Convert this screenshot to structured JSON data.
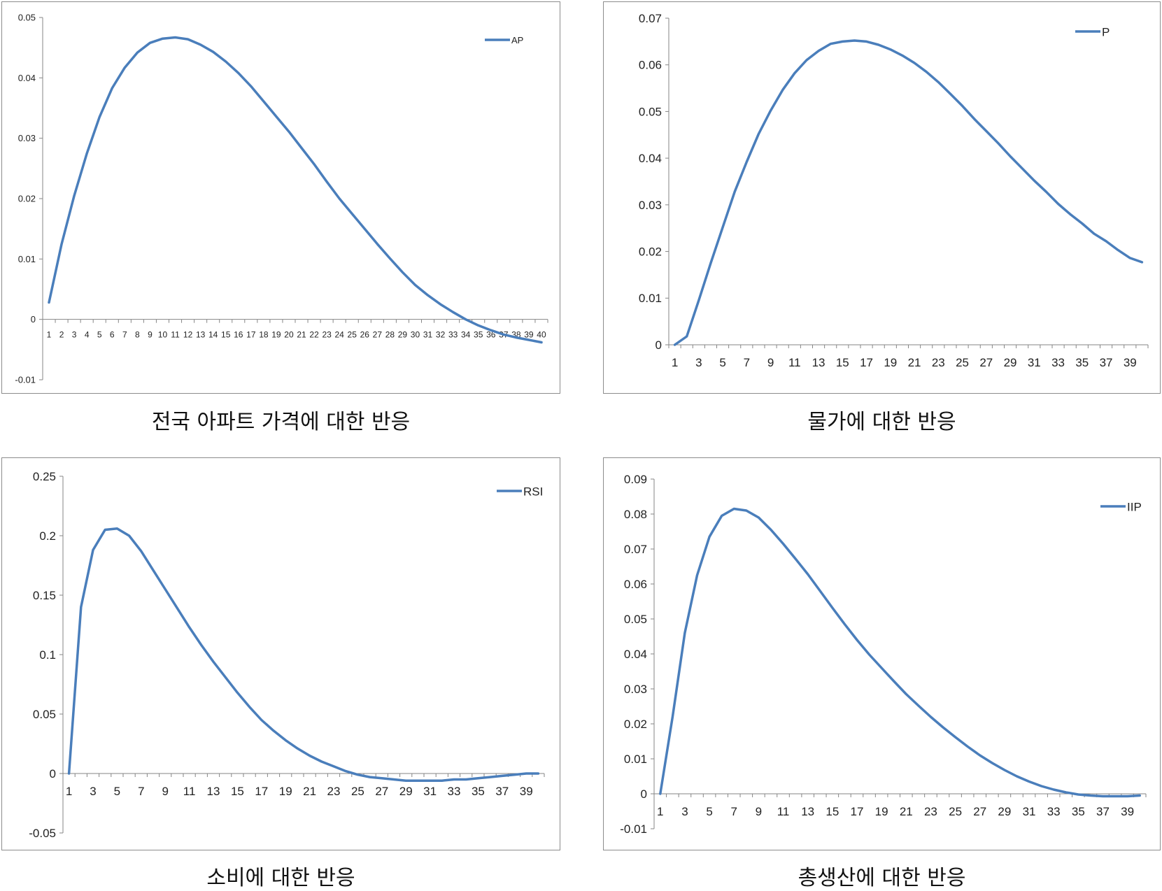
{
  "chart_data": [
    {
      "type": "line",
      "caption": "전국 아파트 가격에 대한 반응",
      "legend": "AP",
      "legend_position": "top-right",
      "ylim": [
        -0.01,
        0.05
      ],
      "yticks": [
        "0.05",
        "0.04",
        "0.03",
        "0.02",
        "0.01",
        "0",
        "-0.01"
      ],
      "ytick_values": [
        0.05,
        0.04,
        0.03,
        0.02,
        0.01,
        0,
        -0.01
      ],
      "xlabels": [
        "1",
        "2",
        "3",
        "4",
        "5",
        "6",
        "7",
        "8",
        "9",
        "10",
        "11",
        "12",
        "13",
        "14",
        "15",
        "16",
        "17",
        "18",
        "19",
        "20",
        "21",
        "22",
        "23",
        "24",
        "25",
        "26",
        "27",
        "28",
        "29",
        "30",
        "31",
        "32",
        "33",
        "34",
        "35",
        "36",
        "37",
        "38",
        "39",
        "40"
      ],
      "values": [
        0.0028,
        0.0125,
        0.0205,
        0.0275,
        0.0335,
        0.0383,
        0.0417,
        0.0442,
        0.0458,
        0.0465,
        0.0467,
        0.0464,
        0.0455,
        0.0443,
        0.0427,
        0.0408,
        0.0386,
        0.0361,
        0.0336,
        0.0311,
        0.0284,
        0.0257,
        0.0228,
        0.02,
        0.0175,
        0.015,
        0.0125,
        0.0101,
        0.0078,
        0.0057,
        0.004,
        0.0025,
        0.0012,
        0.0,
        -0.001,
        -0.0018,
        -0.0025,
        -0.003,
        -0.0034,
        -0.0038
      ]
    },
    {
      "type": "line",
      "caption": "물가에 대한 반응",
      "legend": "P",
      "legend_position": "top-right",
      "ylim": [
        0,
        0.07
      ],
      "yticks": [
        "0.07",
        "0.06",
        "0.05",
        "0.04",
        "0.03",
        "0.02",
        "0.01",
        "0"
      ],
      "ytick_values": [
        0.07,
        0.06,
        0.05,
        0.04,
        0.03,
        0.02,
        0.01,
        0
      ],
      "xlabels": [
        "1",
        "",
        "3",
        "",
        "5",
        "",
        "7",
        "",
        "9",
        "",
        "11",
        "",
        "13",
        "",
        "15",
        "",
        "17",
        "",
        "19",
        "",
        "21",
        "",
        "23",
        "",
        "25",
        "",
        "27",
        "",
        "29",
        "",
        "31",
        "",
        "33",
        "",
        "35",
        "",
        "37",
        "",
        "39",
        ""
      ],
      "values": [
        0.0,
        0.0018,
        0.0095,
        0.0175,
        0.0252,
        0.0328,
        0.0392,
        0.0452,
        0.0502,
        0.0546,
        0.0582,
        0.061,
        0.063,
        0.0645,
        0.065,
        0.0652,
        0.065,
        0.0643,
        0.0633,
        0.062,
        0.0604,
        0.0585,
        0.0563,
        0.0538,
        0.0512,
        0.0484,
        0.0458,
        0.0432,
        0.0404,
        0.0378,
        0.0352,
        0.0328,
        0.0302,
        0.028,
        0.026,
        0.0238,
        0.0222,
        0.0203,
        0.0186,
        0.0177
      ]
    },
    {
      "type": "line",
      "caption": "소비에 대한 반응",
      "legend": "RSI",
      "legend_position": "top-right",
      "ylim": [
        -0.05,
        0.25
      ],
      "yticks": [
        "0.25",
        "0.2",
        "0.15",
        "0.1",
        "0.05",
        "0",
        "-0.05"
      ],
      "ytick_values": [
        0.25,
        0.2,
        0.15,
        0.1,
        0.05,
        0,
        -0.05
      ],
      "xlabels": [
        "1",
        "",
        "3",
        "",
        "5",
        "",
        "7",
        "",
        "9",
        "",
        "11",
        "",
        "13",
        "",
        "15",
        "",
        "17",
        "",
        "19",
        "",
        "21",
        "",
        "23",
        "",
        "25",
        "",
        "27",
        "",
        "29",
        "",
        "31",
        "",
        "33",
        "",
        "35",
        "",
        "37",
        "",
        "39",
        ""
      ],
      "values": [
        0.0,
        0.14,
        0.188,
        0.205,
        0.206,
        0.2,
        0.187,
        0.171,
        0.155,
        0.139,
        0.123,
        0.108,
        0.094,
        0.081,
        0.068,
        0.056,
        0.045,
        0.036,
        0.028,
        0.021,
        0.015,
        0.01,
        0.006,
        0.002,
        -0.001,
        -0.003,
        -0.004,
        -0.005,
        -0.006,
        -0.006,
        -0.006,
        -0.006,
        -0.005,
        -0.005,
        -0.004,
        -0.003,
        -0.002,
        -0.001,
        0.0,
        0.0
      ]
    },
    {
      "type": "line",
      "caption": "총생산에 대한 반응",
      "legend": "IIP",
      "legend_position": "top-right",
      "ylim": [
        -0.01,
        0.09
      ],
      "yticks": [
        "0.09",
        "0.08",
        "0.07",
        "0.06",
        "0.05",
        "0.04",
        "0.03",
        "0.02",
        "0.01",
        "0",
        "-0.01"
      ],
      "ytick_values": [
        0.09,
        0.08,
        0.07,
        0.06,
        0.05,
        0.04,
        0.03,
        0.02,
        0.01,
        0,
        -0.01
      ],
      "xlabels": [
        "1",
        "",
        "3",
        "",
        "5",
        "",
        "7",
        "",
        "9",
        "",
        "11",
        "",
        "13",
        "",
        "15",
        "",
        "17",
        "",
        "19",
        "",
        "21",
        "",
        "23",
        "",
        "25",
        "",
        "27",
        "",
        "29",
        "",
        "31",
        "",
        "33",
        "",
        "35",
        "",
        "37",
        "",
        "39",
        ""
      ],
      "values": [
        0.0,
        0.022,
        0.046,
        0.0625,
        0.0735,
        0.0795,
        0.0815,
        0.081,
        0.079,
        0.0755,
        0.0715,
        0.0672,
        0.0628,
        0.058,
        0.0532,
        0.0485,
        0.044,
        0.0398,
        0.036,
        0.0322,
        0.0285,
        0.0252,
        0.022,
        0.019,
        0.0162,
        0.0135,
        0.011,
        0.0088,
        0.0068,
        0.005,
        0.0035,
        0.0022,
        0.0012,
        0.0004,
        -0.0002,
        -0.0005,
        -0.0007,
        -0.0007,
        -0.0007,
        -0.0005
      ]
    }
  ],
  "colors": {
    "line": "#4a7ebb",
    "axis": "#868686",
    "frame": "#8c8c8c"
  }
}
